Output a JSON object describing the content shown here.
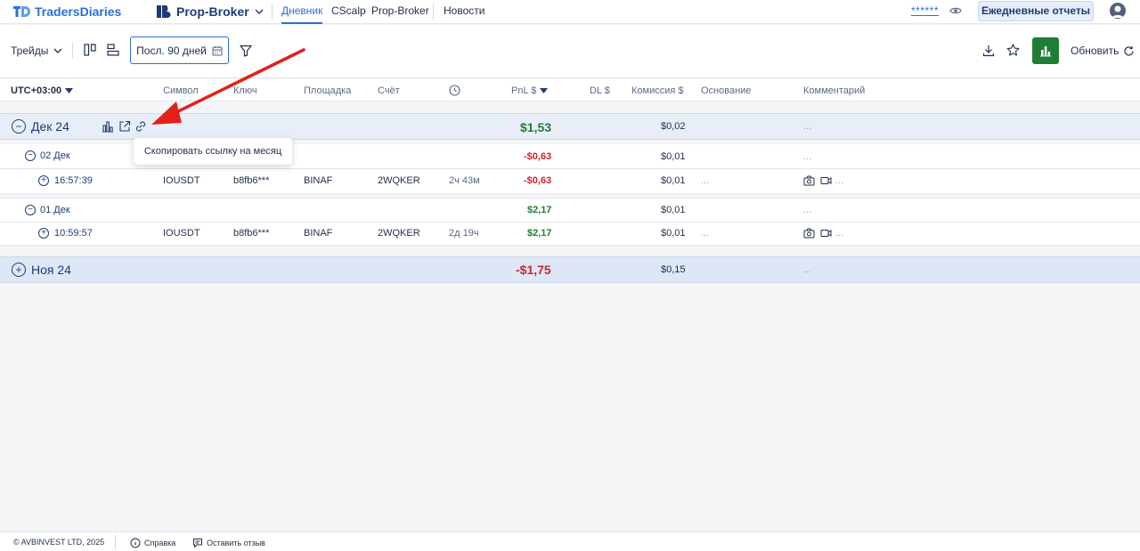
{
  "nav": {
    "logo": "TradersDiaries",
    "broker": "Prop-Broker",
    "tabs": [
      "Дневник",
      "CScalp",
      "Prop-Broker",
      "Новости"
    ],
    "masked_balance": "******",
    "reports_button": "Ежедневные отчеты"
  },
  "toolbar": {
    "trades_label": "Трейды",
    "period": "Посл. 90 дней",
    "refresh_label": "Обновить"
  },
  "table": {
    "headers": {
      "timezone": "UTC+03:00",
      "symbol": "Символ",
      "key": "Ключ",
      "exchange": "Площадка",
      "account": "Счёт",
      "pnl": "PnL $",
      "dl": "DL $",
      "commission": "Комиссия $",
      "reason": "Основание",
      "comment": "Комментарий"
    },
    "dec": {
      "label": "Дек 24",
      "pnl": "$1,53",
      "commission": "$0,02",
      "comment": "..."
    },
    "day1": {
      "label": "02 Дек",
      "pnl": "-$0,63",
      "commission": "$0,01",
      "comment": "..."
    },
    "trade1": {
      "time": "16:57:39",
      "symbol": "IOUSDT",
      "key": "b8fb6***",
      "exchange": "BINAF",
      "account": "2WQKER",
      "duration": "2ч 43м",
      "pnl": "-$0,63",
      "commission": "$0,01",
      "reason": "...",
      "comment": "..."
    },
    "day2": {
      "label": "01 Дек",
      "pnl": "$2,17",
      "commission": "$0,01",
      "comment": "..."
    },
    "trade2": {
      "time": "10:59:57",
      "symbol": "IOUSDT",
      "key": "b8fb6***",
      "exchange": "BINAF",
      "account": "2WQKER",
      "duration": "2д 19ч",
      "pnl": "$2,17",
      "commission": "$0,01",
      "reason": "...",
      "comment": "..."
    },
    "nov": {
      "label": "Ноя 24",
      "pnl": "-$1,75",
      "commission": "$0,15",
      "comment": "..."
    }
  },
  "tooltip": "Скопировать ссылку на месяц",
  "footer": {
    "copyright": "© AVBINVEST LTD, 2025",
    "help": "Справка",
    "feedback": "Оставить отзыв"
  },
  "colors": {
    "accent": "#2a6fd6",
    "positive": "#1e7e34",
    "negative": "#d0232e",
    "arrow": "#e3201b"
  }
}
